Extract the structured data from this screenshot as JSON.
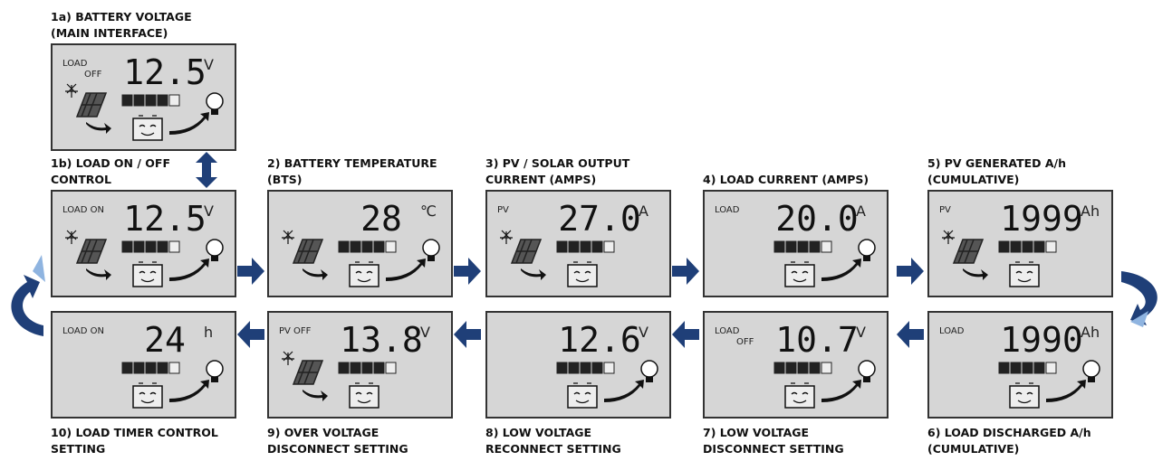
{
  "panels": [
    {
      "caption": [
        "1a) BATTERY VOLTAGE",
        "(MAIN INTERFACE)"
      ],
      "indicator": [
        "LOAD",
        "OFF"
      ],
      "reading": "12.5",
      "unit": "V"
    },
    {
      "caption": [
        "1b) LOAD ON / OFF",
        "CONTROL"
      ],
      "indicator": [
        "LOAD ON"
      ],
      "reading": "12.5",
      "unit": "V"
    },
    {
      "caption": [
        "2) BATTERY TEMPERATURE",
        "(BTS)"
      ],
      "reading": "28",
      "unit": "℃"
    },
    {
      "caption": [
        "3) PV / SOLAR OUTPUT",
        "CURRENT (AMPS)"
      ],
      "indicator": [
        "PV"
      ],
      "reading": "27.0",
      "unit": "A"
    },
    {
      "caption": [
        "4) LOAD CURRENT (AMPS)"
      ],
      "indicator": [
        "LOAD"
      ],
      "reading": "20.0",
      "unit": "A"
    },
    {
      "caption": [
        "5) PV GENERATED A/h",
        "(CUMULATIVE)"
      ],
      "indicator": [
        "PV"
      ],
      "reading": "1999",
      "unit": "Ah"
    },
    {
      "caption": [
        "6) LOAD DISCHARGED A/h",
        "(CUMULATIVE)"
      ],
      "indicator": [
        "LOAD"
      ],
      "reading": "1990",
      "unit": "Ah"
    },
    {
      "caption": [
        "7) LOW VOLTAGE",
        "DISCONNECT SETTING"
      ],
      "indicator": [
        "LOAD",
        "OFF"
      ],
      "reading": "10.7",
      "unit": "V"
    },
    {
      "caption": [
        "8) LOW VOLTAGE",
        "RECONNECT SETTING"
      ],
      "reading": "12.6",
      "unit": "V"
    },
    {
      "caption": [
        "9) OVER VOLTAGE",
        "DISCONNECT SETTING"
      ],
      "indicator": [
        "PV OFF"
      ],
      "reading": "13.8",
      "unit": "V"
    },
    {
      "caption": [
        "10) LOAD TIMER CONTROL",
        "SETTING"
      ],
      "indicator": [
        "LOAD ON"
      ],
      "reading": "24",
      "unit": "h"
    }
  ]
}
